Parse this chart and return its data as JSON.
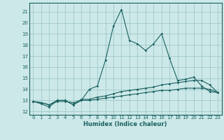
{
  "xlabel": "Humidex (Indice chaleur)",
  "xlim": [
    -0.5,
    23.5
  ],
  "ylim": [
    11.7,
    21.8
  ],
  "yticks": [
    12,
    13,
    14,
    15,
    16,
    17,
    18,
    19,
    20,
    21
  ],
  "xticks": [
    0,
    1,
    2,
    3,
    4,
    5,
    6,
    7,
    8,
    9,
    10,
    11,
    12,
    13,
    14,
    15,
    16,
    17,
    18,
    19,
    20,
    21,
    22,
    23
  ],
  "background_color": "#cce8e8",
  "grid_color": "#a0c8c8",
  "line_color": "#1a6060",
  "line1_y": [
    12.9,
    12.7,
    12.4,
    13.0,
    13.0,
    12.6,
    13.0,
    14.0,
    14.3,
    16.6,
    19.7,
    21.2,
    18.4,
    18.1,
    17.5,
    18.1,
    19.0,
    16.8,
    14.8,
    14.9,
    15.1,
    14.3,
    13.8,
    13.7
  ],
  "line2_y": [
    12.9,
    12.8,
    12.6,
    13.0,
    13.0,
    12.6,
    13.1,
    13.1,
    13.3,
    13.4,
    13.6,
    13.8,
    13.9,
    14.0,
    14.1,
    14.2,
    14.4,
    14.5,
    14.6,
    14.7,
    14.8,
    14.8,
    14.4,
    13.7
  ],
  "line3_y": [
    12.9,
    12.8,
    12.6,
    12.9,
    12.9,
    12.8,
    13.0,
    13.0,
    13.1,
    13.2,
    13.3,
    13.4,
    13.5,
    13.6,
    13.7,
    13.8,
    13.9,
    13.9,
    14.0,
    14.1,
    14.1,
    14.1,
    14.0,
    13.7
  ]
}
